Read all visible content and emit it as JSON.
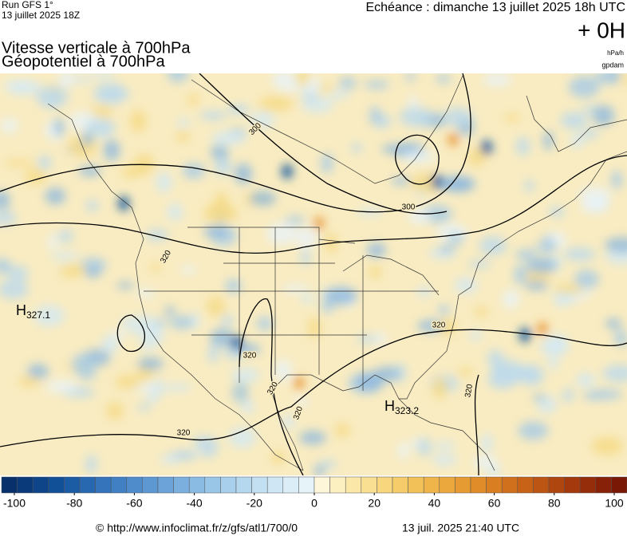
{
  "header": {
    "run": "Run GFS 1°",
    "run_date": "13 juillet 2025 18Z",
    "echeance": "Echéance : dimanche 13 juillet 2025 18h UTC",
    "lead": "+ 0H",
    "title_1": "Vitesse verticale à 700hPa",
    "title_2": "Géopotentiel à 700hPa",
    "unit_1": "hPa/h",
    "unit_2": "gpdam"
  },
  "map": {
    "contour_labels": [
      "300",
      "300",
      "320",
      "320",
      "320",
      "320",
      "320",
      "320",
      "320"
    ],
    "highs": [
      {
        "letter": "H",
        "value": "327.1"
      },
      {
        "letter": "H",
        "value": "323.2"
      }
    ]
  },
  "colorbar": {
    "range": [
      -100,
      100
    ],
    "ticks": [
      -100,
      -80,
      -60,
      -40,
      -20,
      0,
      20,
      40,
      60,
      80,
      100
    ],
    "colors": [
      "#08306b",
      "#0b3a7a",
      "#0e4589",
      "#115097",
      "#1c5ca4",
      "#2868b0",
      "#3574bb",
      "#4280c4",
      "#4f8ccc",
      "#5d98d3",
      "#6ca4d9",
      "#7bb0de",
      "#8abbe3",
      "#99c5e7",
      "#a8cfeb",
      "#b6d8ef",
      "#c3e0f2",
      "#cfe7f5",
      "#dbeef8",
      "#e6f4fa",
      "#fdf6d8",
      "#fcefc0",
      "#fbe7a8",
      "#f9df92",
      "#f7d67d",
      "#f5cc69",
      "#f2c158",
      "#efb54a",
      "#eba83d",
      "#e69b32",
      "#e08d29",
      "#d97f22",
      "#d1701c",
      "#c76217",
      "#bc5413",
      "#b0460f",
      "#a3390c",
      "#952d0a",
      "#872208",
      "#7a1806"
    ]
  },
  "footer": {
    "url": "© http://www.infoclimat.fr/z/gfs/atl1/700/0",
    "timestamp": "13 juil. 2025 21:40 UTC"
  }
}
